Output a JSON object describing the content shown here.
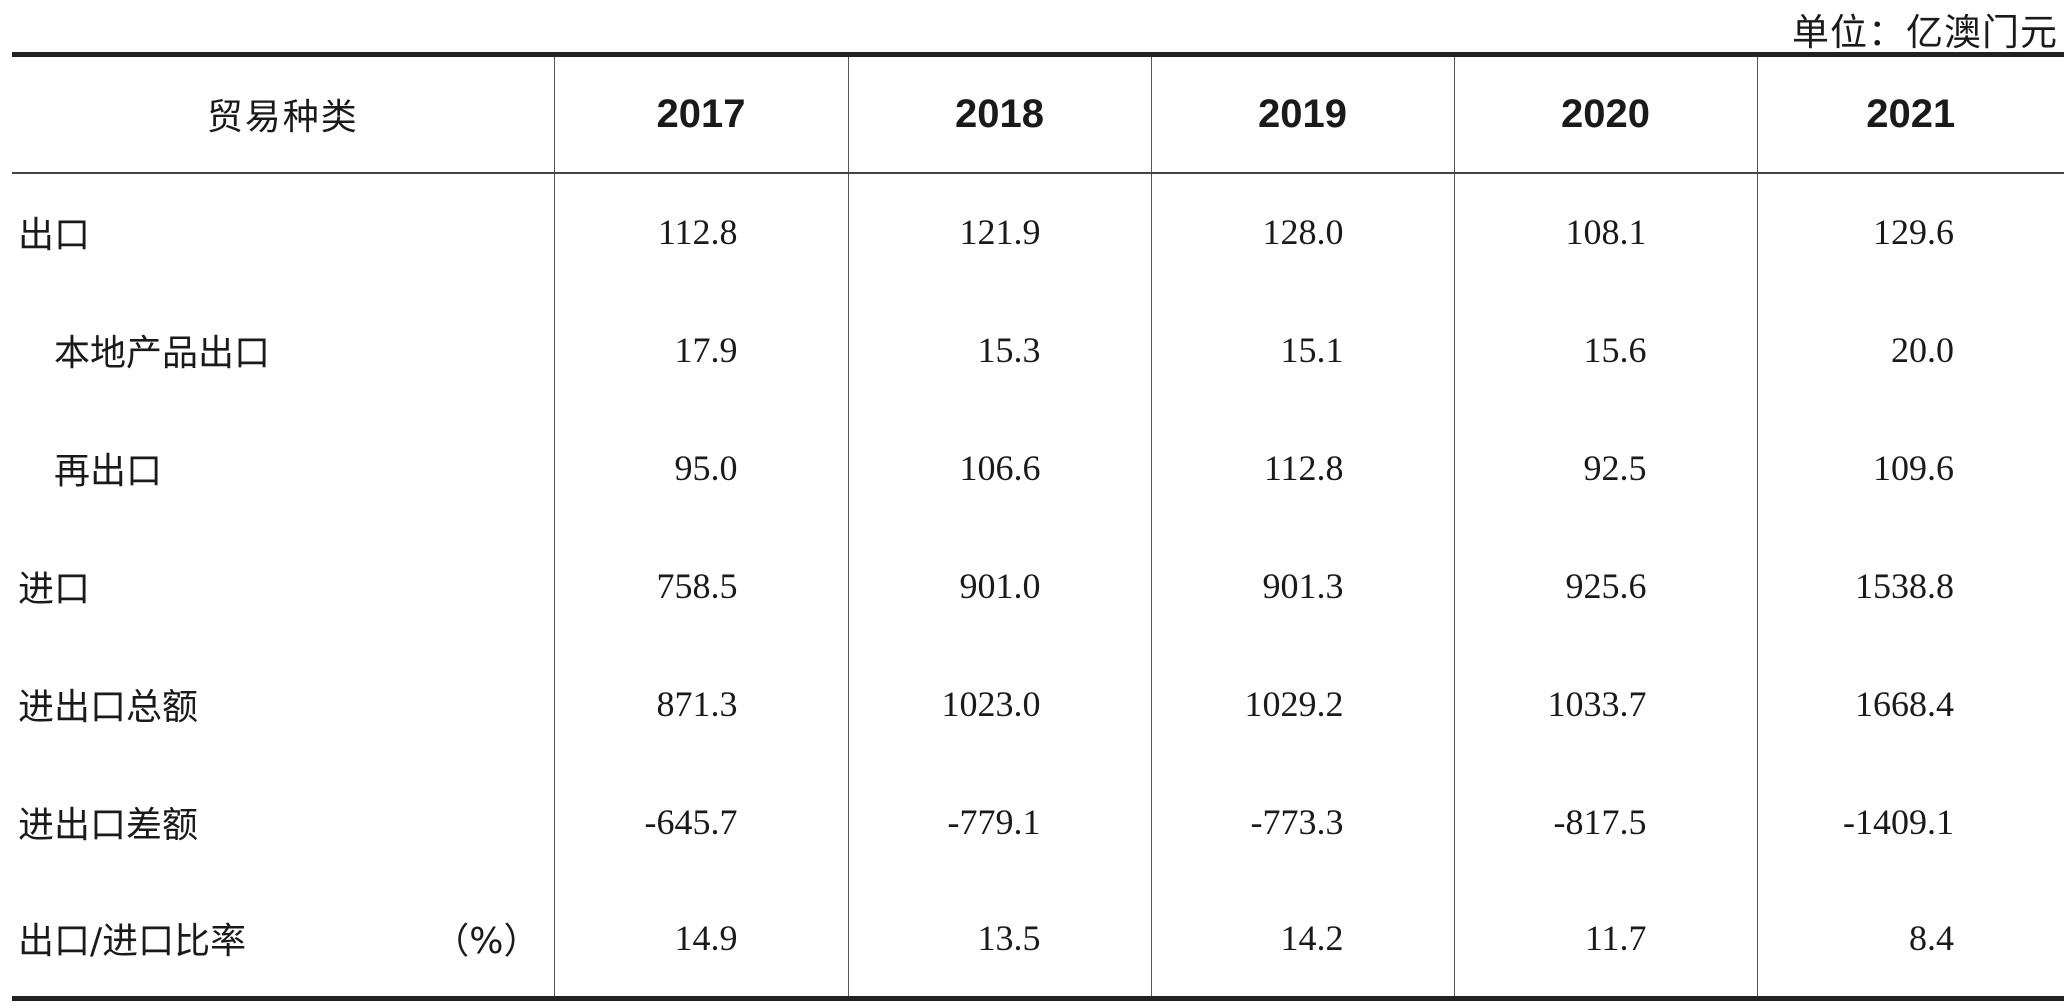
{
  "unit": "单位：亿澳门元",
  "header": {
    "category": "贸易种类",
    "years": [
      "2017",
      "2018",
      "2019",
      "2020",
      "2021"
    ]
  },
  "rows": [
    {
      "label": "出口",
      "values": [
        "112.8",
        "121.9",
        "128.0",
        "108.1",
        "129.6"
      ]
    },
    {
      "label": "本地产品出口",
      "values": [
        "17.9",
        "15.3",
        "15.1",
        "15.6",
        "20.0"
      ]
    },
    {
      "label": "再出口",
      "values": [
        "95.0",
        "106.6",
        "112.8",
        "92.5",
        "109.6"
      ]
    },
    {
      "label": "进口",
      "values": [
        "758.5",
        "901.0",
        "901.3",
        "925.6",
        "1538.8"
      ]
    },
    {
      "label": "进出口总额",
      "values": [
        "871.3",
        "1023.0",
        "1029.2",
        "1033.7",
        "1668.4"
      ]
    },
    {
      "label": "进出口差额",
      "values": [
        "-645.7",
        "-779.1",
        "-773.3",
        "-817.5",
        "-1409.1"
      ]
    },
    {
      "label": "出口/进口比率",
      "suffix": "（%）",
      "values": [
        "14.9",
        "13.5",
        "14.2",
        "11.7",
        "8.4"
      ]
    }
  ],
  "chart_data": {
    "type": "table",
    "columns": [
      "贸易种类",
      "2017",
      "2018",
      "2019",
      "2020",
      "2021"
    ],
    "rows": [
      [
        "出口",
        112.8,
        121.9,
        128.0,
        108.1,
        129.6
      ],
      [
        "本地产品出口",
        17.9,
        15.3,
        15.1,
        15.6,
        20.0
      ],
      [
        "再出口",
        95.0,
        106.6,
        112.8,
        92.5,
        109.6
      ],
      [
        "进口",
        758.5,
        901.0,
        901.3,
        925.6,
        1538.8
      ],
      [
        "进出口总额",
        871.3,
        1023.0,
        1029.2,
        1033.7,
        1668.4
      ],
      [
        "进出口差额",
        -645.7,
        -779.1,
        -773.3,
        -817.5,
        -1409.1
      ],
      [
        "出口/进口比率（%）",
        14.9,
        13.5,
        14.2,
        11.7,
        8.4
      ]
    ]
  }
}
